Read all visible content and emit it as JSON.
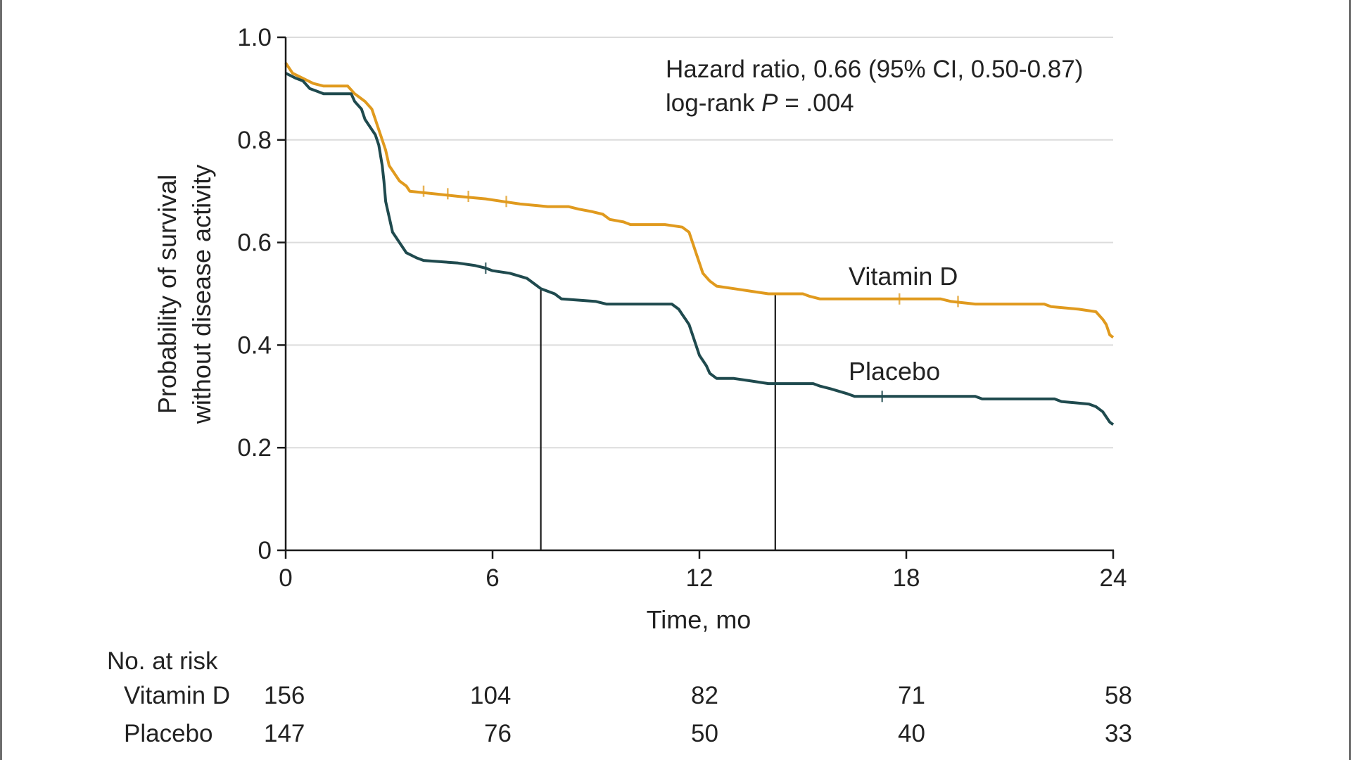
{
  "chart_data": {
    "type": "line",
    "subtype": "kaplan-meier",
    "title": "",
    "xlabel": "Time, mo",
    "ylabel": [
      "Probability of survival",
      "without disease activity"
    ],
    "xlim": [
      0,
      24
    ],
    "ylim": [
      0,
      1.0
    ],
    "x_ticks": [
      0,
      6,
      12,
      18,
      24
    ],
    "x_tick_labels": [
      "0",
      "6",
      "12",
      "18",
      "24"
    ],
    "y_ticks": [
      0,
      0.2,
      0.4,
      0.6,
      0.8,
      1.0
    ],
    "y_tick_labels": [
      "0",
      "0.2",
      "0.4",
      "0.6",
      "0.8",
      "1.0"
    ],
    "grid": "horizontal",
    "annotation": {
      "line1": "Hazard ratio, 0.66 (95% CI, 0.50-0.87)",
      "line2_prefix": "log-rank ",
      "line2_p": "P",
      "line2_suffix": " = .004"
    },
    "median_lines": [
      {
        "x": 7.4,
        "y": 0.51
      },
      {
        "x": 14.2,
        "y": 0.5
      }
    ],
    "series": [
      {
        "name": "Vitamin D",
        "color": "#e09a1e",
        "points": [
          [
            0,
            0.95
          ],
          [
            0.2,
            0.93
          ],
          [
            0.5,
            0.92
          ],
          [
            0.8,
            0.91
          ],
          [
            1.1,
            0.905
          ],
          [
            1.8,
            0.905
          ],
          [
            2.0,
            0.89
          ],
          [
            2.3,
            0.875
          ],
          [
            2.5,
            0.86
          ],
          [
            2.6,
            0.84
          ],
          [
            2.7,
            0.82
          ],
          [
            2.8,
            0.8
          ],
          [
            2.9,
            0.78
          ],
          [
            3.0,
            0.75
          ],
          [
            3.1,
            0.74
          ],
          [
            3.3,
            0.72
          ],
          [
            3.5,
            0.71
          ],
          [
            3.6,
            0.7
          ],
          [
            5.0,
            0.69
          ],
          [
            5.8,
            0.685
          ],
          [
            6.3,
            0.68
          ],
          [
            6.8,
            0.675
          ],
          [
            7.6,
            0.67
          ],
          [
            8.2,
            0.67
          ],
          [
            8.5,
            0.665
          ],
          [
            8.9,
            0.66
          ],
          [
            9.2,
            0.655
          ],
          [
            9.4,
            0.645
          ],
          [
            9.8,
            0.64
          ],
          [
            10.0,
            0.635
          ],
          [
            11.0,
            0.635
          ],
          [
            11.5,
            0.63
          ],
          [
            11.7,
            0.62
          ],
          [
            11.8,
            0.6
          ],
          [
            11.9,
            0.58
          ],
          [
            12.0,
            0.56
          ],
          [
            12.1,
            0.54
          ],
          [
            12.3,
            0.525
          ],
          [
            12.5,
            0.515
          ],
          [
            13.0,
            0.51
          ],
          [
            13.5,
            0.505
          ],
          [
            14.0,
            0.5
          ],
          [
            15.0,
            0.5
          ],
          [
            15.2,
            0.495
          ],
          [
            15.5,
            0.49
          ],
          [
            19.0,
            0.49
          ],
          [
            19.3,
            0.485
          ],
          [
            20.0,
            0.48
          ],
          [
            22.0,
            0.48
          ],
          [
            22.2,
            0.475
          ],
          [
            23.0,
            0.47
          ],
          [
            23.5,
            0.465
          ],
          [
            23.7,
            0.45
          ],
          [
            23.8,
            0.44
          ],
          [
            23.9,
            0.42
          ],
          [
            24.0,
            0.415
          ]
        ],
        "censor_marks": [
          [
            4.0,
            0.7
          ],
          [
            4.7,
            0.695
          ],
          [
            5.3,
            0.69
          ],
          [
            6.4,
            0.68
          ],
          [
            17.8,
            0.49
          ],
          [
            19.5,
            0.485
          ]
        ]
      },
      {
        "name": "Placebo",
        "color": "#1f4a4e",
        "points": [
          [
            0,
            0.93
          ],
          [
            0.3,
            0.92
          ],
          [
            0.5,
            0.915
          ],
          [
            0.7,
            0.9
          ],
          [
            0.9,
            0.895
          ],
          [
            1.1,
            0.89
          ],
          [
            1.9,
            0.89
          ],
          [
            2.0,
            0.875
          ],
          [
            2.2,
            0.86
          ],
          [
            2.3,
            0.84
          ],
          [
            2.5,
            0.82
          ],
          [
            2.6,
            0.81
          ],
          [
            2.7,
            0.79
          ],
          [
            2.8,
            0.75
          ],
          [
            2.85,
            0.72
          ],
          [
            2.9,
            0.68
          ],
          [
            3.0,
            0.65
          ],
          [
            3.1,
            0.62
          ],
          [
            3.2,
            0.61
          ],
          [
            3.3,
            0.6
          ],
          [
            3.5,
            0.58
          ],
          [
            3.8,
            0.57
          ],
          [
            4.0,
            0.565
          ],
          [
            5.0,
            0.56
          ],
          [
            5.5,
            0.555
          ],
          [
            5.8,
            0.55
          ],
          [
            6.0,
            0.545
          ],
          [
            6.5,
            0.54
          ],
          [
            7.0,
            0.53
          ],
          [
            7.4,
            0.51
          ],
          [
            7.8,
            0.5
          ],
          [
            8.0,
            0.49
          ],
          [
            9.0,
            0.485
          ],
          [
            9.3,
            0.48
          ],
          [
            11.2,
            0.48
          ],
          [
            11.4,
            0.47
          ],
          [
            11.5,
            0.46
          ],
          [
            11.6,
            0.45
          ],
          [
            11.7,
            0.44
          ],
          [
            11.8,
            0.42
          ],
          [
            11.9,
            0.4
          ],
          [
            12.0,
            0.38
          ],
          [
            12.1,
            0.37
          ],
          [
            12.2,
            0.36
          ],
          [
            12.3,
            0.345
          ],
          [
            12.5,
            0.335
          ],
          [
            13.0,
            0.335
          ],
          [
            13.5,
            0.33
          ],
          [
            14.0,
            0.325
          ],
          [
            15.3,
            0.325
          ],
          [
            15.5,
            0.32
          ],
          [
            15.8,
            0.315
          ],
          [
            16.3,
            0.305
          ],
          [
            16.5,
            0.3
          ],
          [
            20.0,
            0.3
          ],
          [
            20.2,
            0.295
          ],
          [
            22.3,
            0.295
          ],
          [
            22.5,
            0.29
          ],
          [
            23.3,
            0.285
          ],
          [
            23.5,
            0.28
          ],
          [
            23.7,
            0.27
          ],
          [
            23.8,
            0.26
          ],
          [
            23.9,
            0.25
          ],
          [
            24.0,
            0.245
          ]
        ],
        "censor_marks": [
          [
            5.8,
            0.55
          ],
          [
            17.3,
            0.3
          ]
        ]
      }
    ],
    "risk_table": {
      "title": "No. at risk",
      "rows": [
        {
          "name": "Vitamin D",
          "values": [
            "156",
            "104",
            "82",
            "71",
            "58"
          ]
        },
        {
          "name": "Placebo",
          "values": [
            "147",
            "76",
            "50",
            "40",
            "33"
          ]
        }
      ]
    }
  }
}
